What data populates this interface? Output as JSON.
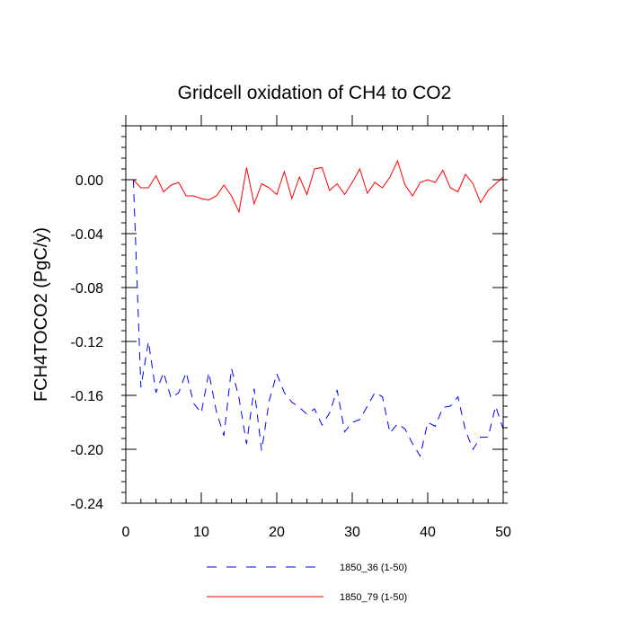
{
  "chart_data": {
    "type": "line",
    "title": "Gridcell oxidation of CH4 to CO2",
    "xlabel": "",
    "ylabel": "FCH4TOCO2  (PgC/y)",
    "xlim": [
      0,
      50
    ],
    "ylim": [
      -0.24,
      0.04
    ],
    "xticks": [
      0,
      10,
      20,
      30,
      40,
      50
    ],
    "xtick_labels": [
      "0",
      "10",
      "20",
      "30",
      "40",
      "50"
    ],
    "yticks": [
      -0.24,
      -0.2,
      -0.16,
      -0.12,
      -0.08,
      -0.04,
      0.0
    ],
    "ytick_labels": [
      "-0.24",
      "-0.20",
      "-0.16",
      "-0.12",
      "-0.08",
      "-0.04",
      "0.00"
    ],
    "x": [
      1,
      2,
      3,
      4,
      5,
      6,
      7,
      8,
      9,
      10,
      11,
      12,
      13,
      14,
      15,
      16,
      17,
      18,
      19,
      20,
      21,
      22,
      23,
      24,
      25,
      26,
      27,
      28,
      29,
      30,
      31,
      32,
      33,
      34,
      35,
      36,
      37,
      38,
      39,
      40,
      41,
      42,
      43,
      44,
      45,
      46,
      47,
      48,
      49,
      50
    ],
    "series": [
      {
        "name": "1850_36 (1-50)",
        "color": "#0000ff",
        "style": "dashed",
        "values": [
          0.0,
          -0.154,
          -0.12,
          -0.158,
          -0.143,
          -0.162,
          -0.158,
          -0.143,
          -0.166,
          -0.173,
          -0.143,
          -0.172,
          -0.19,
          -0.14,
          -0.162,
          -0.196,
          -0.155,
          -0.201,
          -0.164,
          -0.144,
          -0.158,
          -0.165,
          -0.169,
          -0.174,
          -0.17,
          -0.182,
          -0.173,
          -0.156,
          -0.187,
          -0.18,
          -0.178,
          -0.168,
          -0.158,
          -0.161,
          -0.188,
          -0.181,
          -0.185,
          -0.196,
          -0.205,
          -0.18,
          -0.183,
          -0.169,
          -0.168,
          -0.161,
          -0.186,
          -0.2,
          -0.191,
          -0.191,
          -0.168,
          -0.185
        ]
      },
      {
        "name": "1850_79 (1-50)",
        "color": "#ff0000",
        "style": "solid",
        "values": [
          0.0,
          -0.006,
          -0.006,
          0.003,
          -0.009,
          -0.004,
          -0.002,
          -0.012,
          -0.012,
          -0.014,
          -0.015,
          -0.012,
          -0.004,
          -0.012,
          -0.024,
          0.009,
          -0.018,
          -0.003,
          -0.006,
          -0.011,
          0.006,
          -0.014,
          0.002,
          -0.011,
          0.008,
          0.009,
          -0.008,
          -0.003,
          -0.011,
          -0.002,
          0.008,
          -0.01,
          -0.002,
          -0.006,
          0.002,
          0.014,
          -0.004,
          -0.012,
          -0.002,
          0.0,
          -0.002,
          0.007,
          -0.006,
          -0.009,
          0.004,
          -0.003,
          -0.017,
          -0.008,
          -0.003,
          0.002
        ]
      }
    ]
  }
}
